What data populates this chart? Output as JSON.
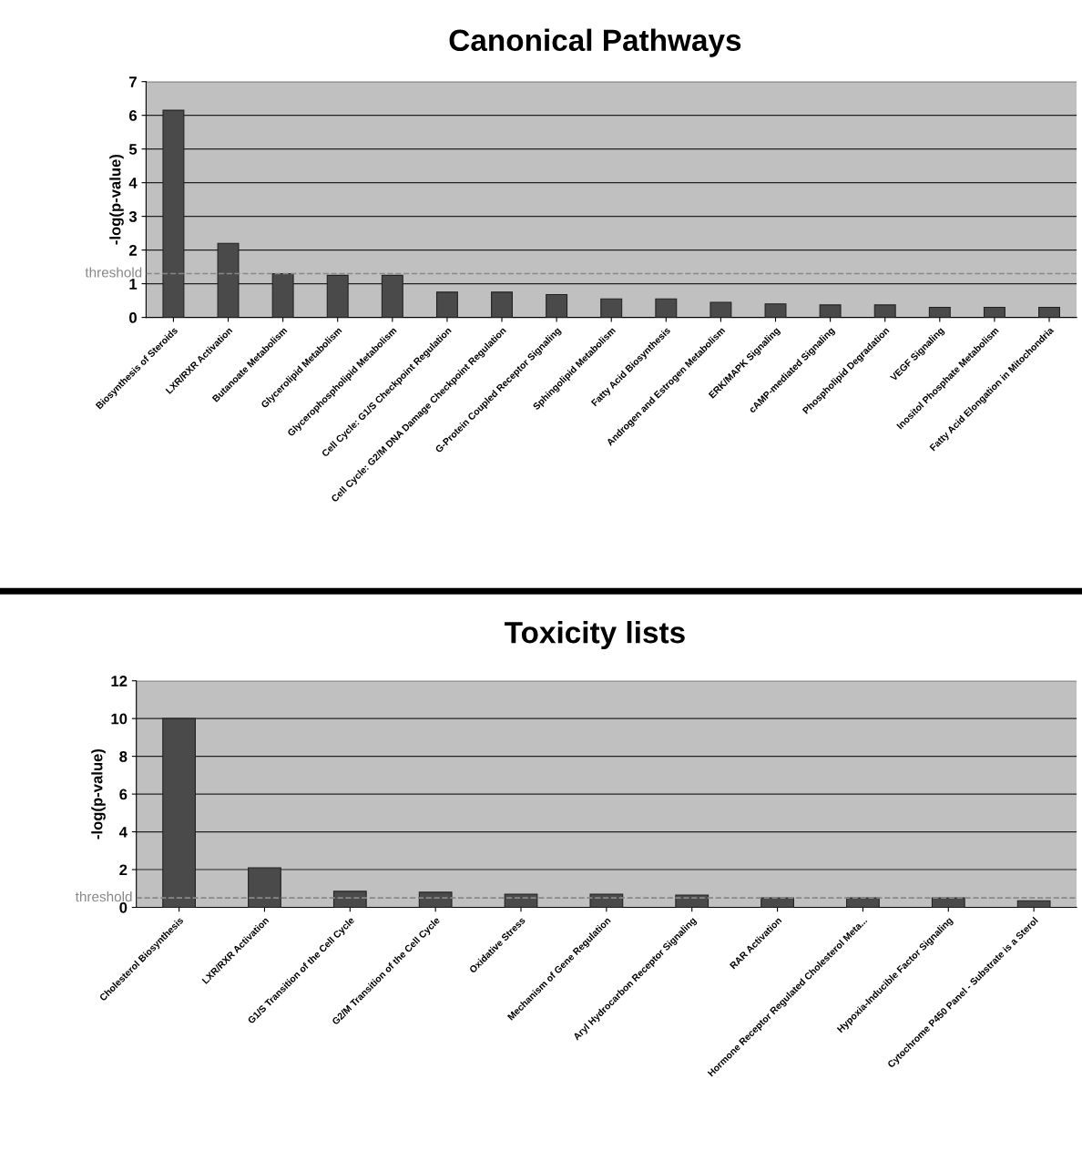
{
  "chart_data": [
    {
      "type": "bar",
      "title": "Canonical Pathways",
      "ylabel": "-log(p-value)",
      "categories": [
        "Biosynthesis of Steroids",
        "LXR/RXR Activation",
        "Butanoate Metabolism",
        "Glycerolipid Metabolism",
        "Glycerophospholipid Metabolism",
        "Cell Cycle: G1/S Checkpoint Regulation",
        "Cell Cycle: G2/M DNA Damage Checkpoint Regulation",
        "G-Protein Coupled Receptor Signaling",
        "Sphingolipid Metabolism",
        "Fatty Acid Biosynthesis",
        "Androgen and Estrogen Metabolism",
        "ERK/MAPK Signaling",
        "cAMP-mediated Signaling",
        "Phospholipid Degradation",
        "VEGF Signaling",
        "Inositol Phosphate Metabolism",
        "Fatty Acid Elongation in Mitochondria"
      ],
      "values": [
        6.15,
        2.2,
        1.3,
        1.25,
        1.25,
        0.75,
        0.75,
        0.68,
        0.55,
        0.55,
        0.45,
        0.4,
        0.37,
        0.37,
        0.3,
        0.3,
        0.3
      ],
      "color": "#4a4a4a",
      "ylim": [
        0,
        7
      ],
      "yticks": [
        0,
        1,
        2,
        3,
        4,
        5,
        6,
        7
      ],
      "grid": "y",
      "ref_lines": [
        {
          "axis": "y",
          "value": 1.3,
          "label": "threshold",
          "color": "#888888",
          "line_style": "dashed"
        }
      ]
    },
    {
      "type": "bar",
      "title": "Toxicity lists",
      "ylabel": "-log(p-value)",
      "categories": [
        "Cholesterol Biosynthesis",
        "LXR/RXR Activation",
        "G1/S Transition of the Cell Cycle",
        "G2/M Transition of the Cell Cycle",
        "Oxidative Stress",
        "Mechanism of Gene Regulation",
        "Aryl Hydrocarbon Receptor Signaling",
        "RAR Activation",
        "Hormone Receptor Regulated Cholesterol Meta...",
        "Hypoxia-Inducible Factor Signaling",
        "Cytochrome P450 Panel - Substrate is a Sterol"
      ],
      "values": [
        10,
        2.1,
        0.85,
        0.8,
        0.7,
        0.7,
        0.65,
        0.5,
        0.5,
        0.5,
        0.35
      ],
      "color": "#4a4a4a",
      "ylim": [
        0,
        12
      ],
      "yticks": [
        0,
        2,
        4,
        6,
        8,
        10,
        12
      ],
      "grid": "y",
      "ref_lines": [
        {
          "axis": "y",
          "value": 0.5,
          "label": "threshold",
          "color": "#888888",
          "line_style": "dashed"
        }
      ]
    }
  ]
}
